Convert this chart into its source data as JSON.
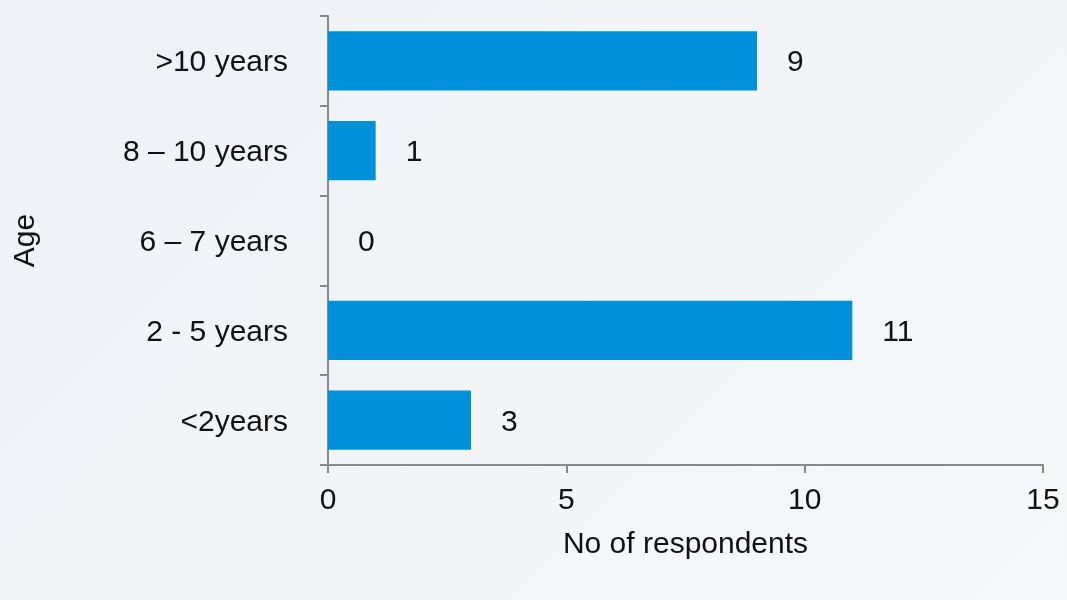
{
  "chart_data": {
    "type": "bar",
    "orientation": "horizontal",
    "xlabel": "No of respondents",
    "ylabel": "Age",
    "categories": [
      ">10 years",
      "8 – 10 years",
      "6 – 7 years",
      "2 - 5 years",
      "<2years"
    ],
    "values": [
      9,
      1,
      0,
      11,
      3
    ],
    "color": "#0091da",
    "data_labels": true,
    "xlim": [
      0,
      15
    ],
    "xticks": [
      0,
      5,
      10,
      15
    ],
    "grid": false
  }
}
